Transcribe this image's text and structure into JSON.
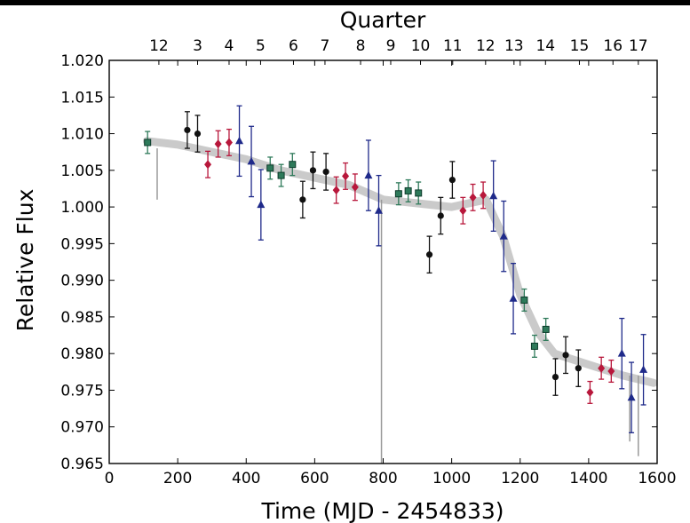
{
  "chart_data": {
    "type": "scatter",
    "xlabel": "Time (MJD - 2454833)",
    "ylabel": "Relative Flux",
    "top_axis_label": "Quarter",
    "xlim": [
      0,
      1600
    ],
    "ylim": [
      0.965,
      1.02
    ],
    "x_ticks": [
      "0",
      "200",
      "400",
      "600",
      "800",
      "1000",
      "1200",
      "1400",
      "1600"
    ],
    "y_ticks": [
      "0.965",
      "0.970",
      "0.975",
      "0.980",
      "0.985",
      "0.990",
      "0.995",
      "1.000",
      "1.005",
      "1.010",
      "1.015",
      "1.020"
    ],
    "top_ticks": [
      {
        "label": "12",
        "x": 145
      },
      {
        "label": "3",
        "x": 258
      },
      {
        "label": "4",
        "x": 350
      },
      {
        "label": "5",
        "x": 442
      },
      {
        "label": "6",
        "x": 538
      },
      {
        "label": "7",
        "x": 630
      },
      {
        "label": "8",
        "x": 734
      },
      {
        "label": "9",
        "x": 822
      },
      {
        "label": "10",
        "x": 909
      },
      {
        "label": "11",
        "x": 1003
      },
      {
        "label": "12",
        "x": 1099
      },
      {
        "label": "13",
        "x": 1182
      },
      {
        "label": "14",
        "x": 1274
      },
      {
        "label": "15",
        "x": 1373
      },
      {
        "label": "16",
        "x": 1471
      },
      {
        "label": "17",
        "x": 1545
      }
    ],
    "grid": false,
    "background_trend": {
      "color": "#b8b8b8",
      "points": [
        [
          110,
          1.009
        ],
        [
          200,
          1.0085
        ],
        [
          300,
          1.0075
        ],
        [
          400,
          1.0065
        ],
        [
          500,
          1.005
        ],
        [
          600,
          1.004
        ],
        [
          700,
          1.003
        ],
        [
          800,
          1.001
        ],
        [
          900,
          1.0005
        ],
        [
          1000,
          1.0
        ],
        [
          1100,
          1.001
        ],
        [
          1150,
          0.996
        ],
        [
          1200,
          0.988
        ],
        [
          1250,
          0.983
        ],
        [
          1300,
          0.98
        ],
        [
          1400,
          0.9785
        ],
        [
          1500,
          0.977
        ],
        [
          1590,
          0.976
        ]
      ],
      "dips": [
        [
          140,
          1.008,
          1.001
        ],
        [
          795,
          1.001,
          0.965
        ],
        [
          1520,
          0.977,
          0.968
        ],
        [
          1545,
          0.977,
          0.966
        ]
      ]
    },
    "series": [
      {
        "marker": "circle",
        "color": "#111111",
        "points": [
          {
            "x": 228,
            "y": 1.0105,
            "err": 0.0025
          },
          {
            "x": 258,
            "y": 1.01,
            "err": 0.0025
          },
          {
            "x": 565,
            "y": 1.001,
            "err": 0.0025
          },
          {
            "x": 595,
            "y": 1.005,
            "err": 0.0025
          },
          {
            "x": 633,
            "y": 1.0048,
            "err": 0.0025
          },
          {
            "x": 935,
            "y": 0.9935,
            "err": 0.0025
          },
          {
            "x": 968,
            "y": 0.9988,
            "err": 0.0025
          },
          {
            "x": 1002,
            "y": 1.0037,
            "err": 0.0025
          },
          {
            "x": 1303,
            "y": 0.9768,
            "err": 0.0025
          },
          {
            "x": 1333,
            "y": 0.9798,
            "err": 0.0025
          },
          {
            "x": 1370,
            "y": 0.978,
            "err": 0.0025
          }
        ]
      },
      {
        "marker": "diamond",
        "color": "#b8173b",
        "points": [
          {
            "x": 288,
            "y": 1.0058,
            "err": 0.0018
          },
          {
            "x": 318,
            "y": 1.0086,
            "err": 0.0018
          },
          {
            "x": 350,
            "y": 1.0088,
            "err": 0.0018
          },
          {
            "x": 663,
            "y": 1.0023,
            "err": 0.0018
          },
          {
            "x": 690,
            "y": 1.0042,
            "err": 0.0018
          },
          {
            "x": 718,
            "y": 1.0027,
            "err": 0.0018
          },
          {
            "x": 1033,
            "y": 0.9995,
            "err": 0.0018
          },
          {
            "x": 1062,
            "y": 1.0013,
            "err": 0.0018
          },
          {
            "x": 1092,
            "y": 1.0016,
            "err": 0.0018
          },
          {
            "x": 1404,
            "y": 0.9747,
            "err": 0.0015
          },
          {
            "x": 1437,
            "y": 0.978,
            "err": 0.0015
          },
          {
            "x": 1466,
            "y": 0.9776,
            "err": 0.0015
          }
        ]
      },
      {
        "marker": "triangle",
        "color": "#1f2a8a",
        "points": [
          {
            "x": 380,
            "y": 1.009,
            "err": 0.0048
          },
          {
            "x": 415,
            "y": 1.0062,
            "err": 0.0048
          },
          {
            "x": 443,
            "y": 1.0003,
            "err": 0.0048
          },
          {
            "x": 757,
            "y": 1.0043,
            "err": 0.0048
          },
          {
            "x": 787,
            "y": 0.9995,
            "err": 0.0048
          },
          {
            "x": 1122,
            "y": 1.0015,
            "err": 0.0048
          },
          {
            "x": 1152,
            "y": 0.996,
            "err": 0.0048
          },
          {
            "x": 1180,
            "y": 0.9875,
            "err": 0.0048
          },
          {
            "x": 1497,
            "y": 0.98,
            "err": 0.0048
          },
          {
            "x": 1525,
            "y": 0.974,
            "err": 0.0048
          },
          {
            "x": 1560,
            "y": 0.9778,
            "err": 0.0048
          }
        ]
      },
      {
        "marker": "square",
        "color": "#2e7a5a",
        "points": [
          {
            "x": 112,
            "y": 1.0088,
            "err": 0.0015
          },
          {
            "x": 470,
            "y": 1.0053,
            "err": 0.0015
          },
          {
            "x": 502,
            "y": 1.0043,
            "err": 0.0015
          },
          {
            "x": 535,
            "y": 1.0058,
            "err": 0.0015
          },
          {
            "x": 845,
            "y": 1.0018,
            "err": 0.0015
          },
          {
            "x": 873,
            "y": 1.0022,
            "err": 0.0015
          },
          {
            "x": 903,
            "y": 1.0019,
            "err": 0.0015
          },
          {
            "x": 1212,
            "y": 0.9873,
            "err": 0.0015
          },
          {
            "x": 1242,
            "y": 0.981,
            "err": 0.0015
          },
          {
            "x": 1275,
            "y": 0.9833,
            "err": 0.0015
          }
        ]
      }
    ]
  }
}
